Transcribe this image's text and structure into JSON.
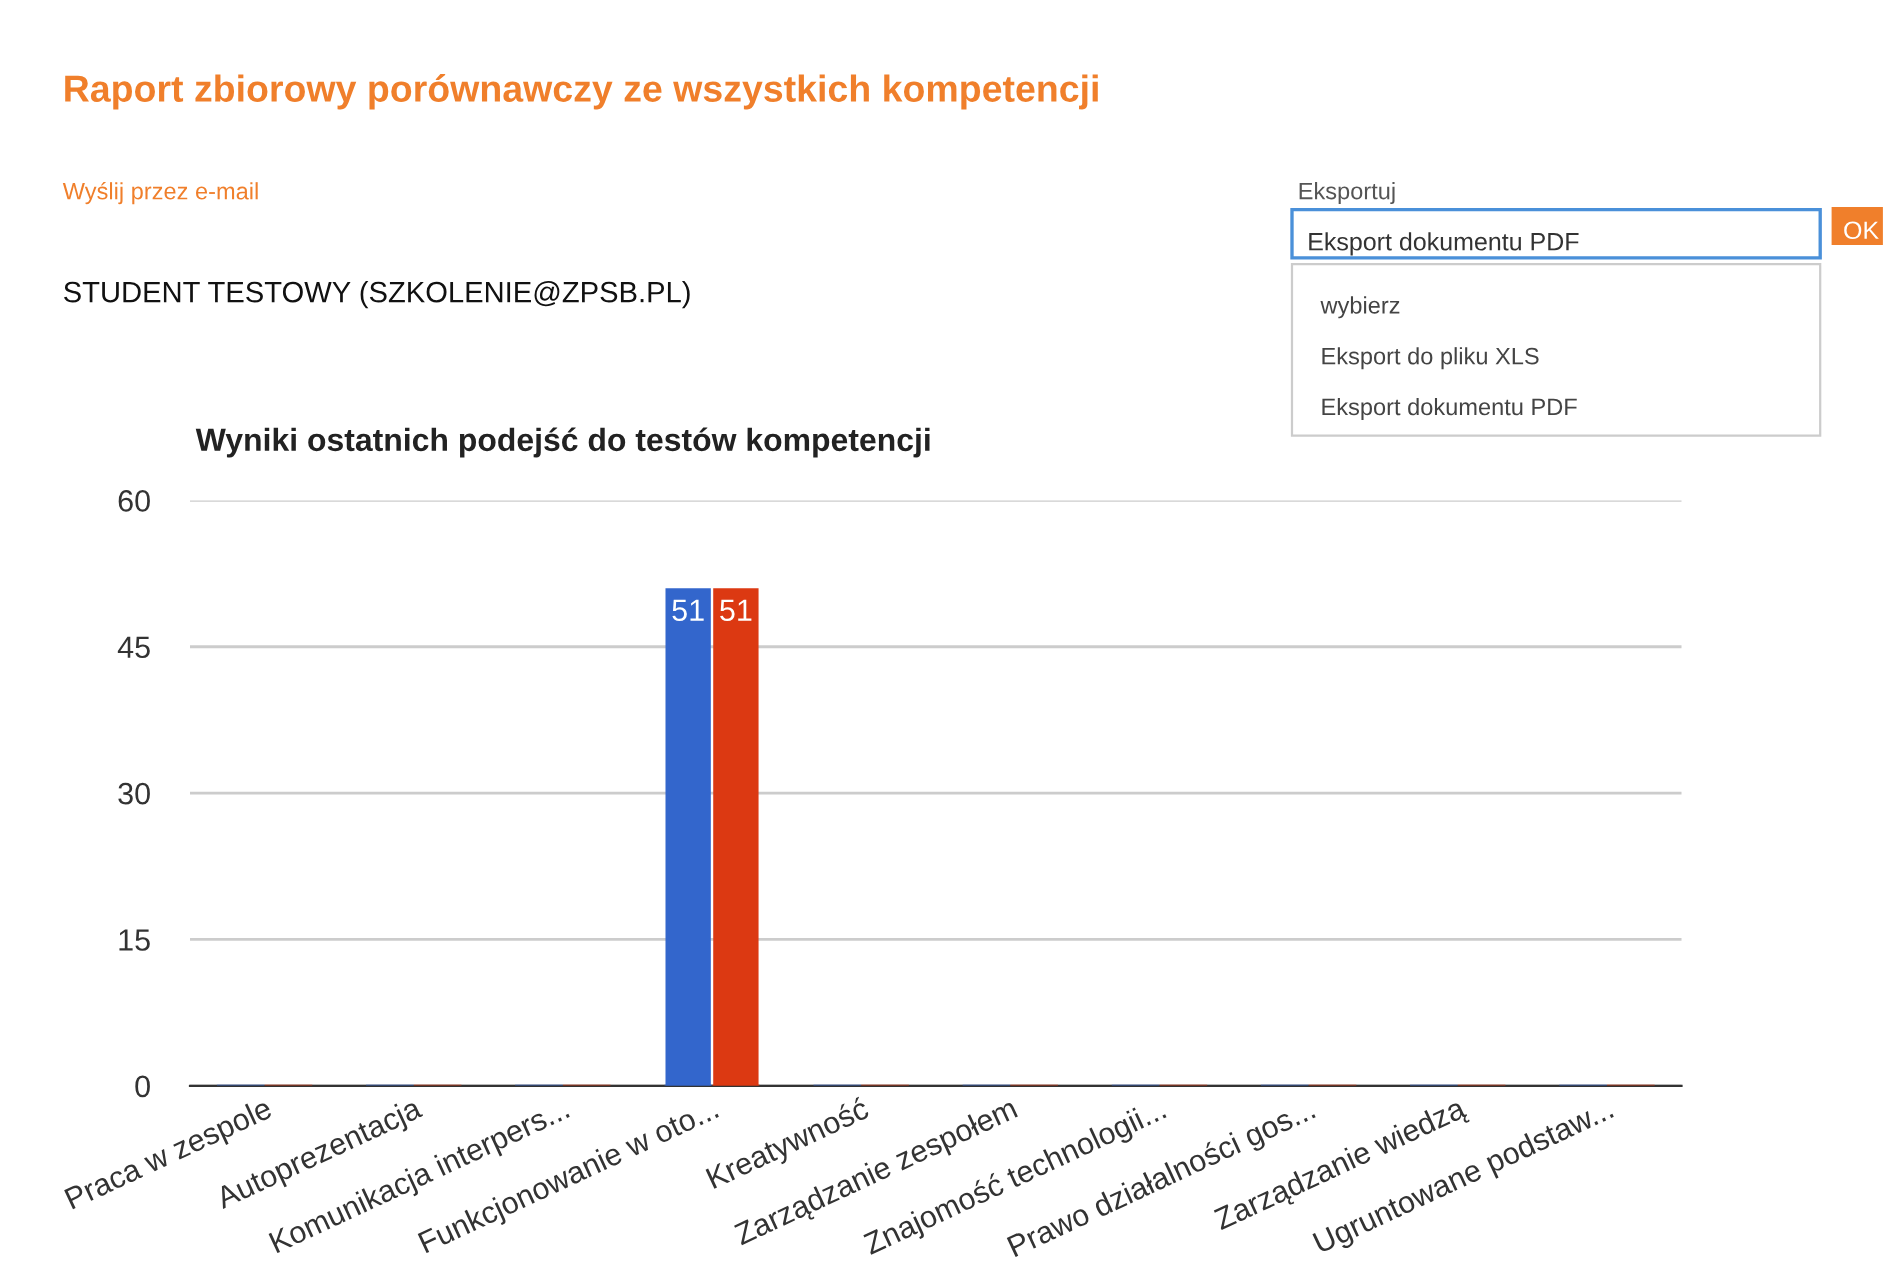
{
  "chart_data": {
    "type": "bar",
    "title": "Raport zbiorowy porównawczy ze wszystkich kompetencji",
    "subtitle": "Wyniki ostatnich podejść do testów kompetencji",
    "categories": [
      "Praca w zespole",
      "Autoprezentacja",
      "Komunikacja interpers...",
      "Funkcjonowanie w oto...",
      "Kreatywność",
      "Zarządzanie zespołem",
      "Znajomość technologii...",
      "Prawo działalności gos...",
      "Zarządzanie wiedzą",
      "Ugruntowane podstaw..."
    ],
    "series": [
      {
        "color": "#3366cc",
        "values": [
          0,
          0,
          0,
          51,
          0,
          0,
          0,
          0,
          0,
          0
        ],
        "value_labels": [
          null,
          null,
          null,
          "51",
          null,
          null,
          null,
          null,
          null,
          null
        ]
      },
      {
        "color": "#dc3912",
        "values": [
          0,
          0,
          0,
          51,
          0,
          0,
          0,
          0,
          0,
          0
        ],
        "value_labels": [
          null,
          null,
          null,
          "51",
          null,
          null,
          null,
          null,
          null,
          null
        ]
      }
    ],
    "ylim": [
      0,
      60
    ],
    "yticks": [
      0,
      15,
      30,
      45,
      60
    ],
    "grid": "y",
    "legend": false,
    "annotations": [
      "Wyślij przez e-mail",
      "STUDENT TESTOWY (SZKOLENIE@ZPSB.PL)",
      "Eksportuj",
      "Eksport dokumentu PDF",
      "wybierz",
      "Eksport do pliku XLS",
      "Eksport dokumentu PDF",
      "OK"
    ]
  }
}
